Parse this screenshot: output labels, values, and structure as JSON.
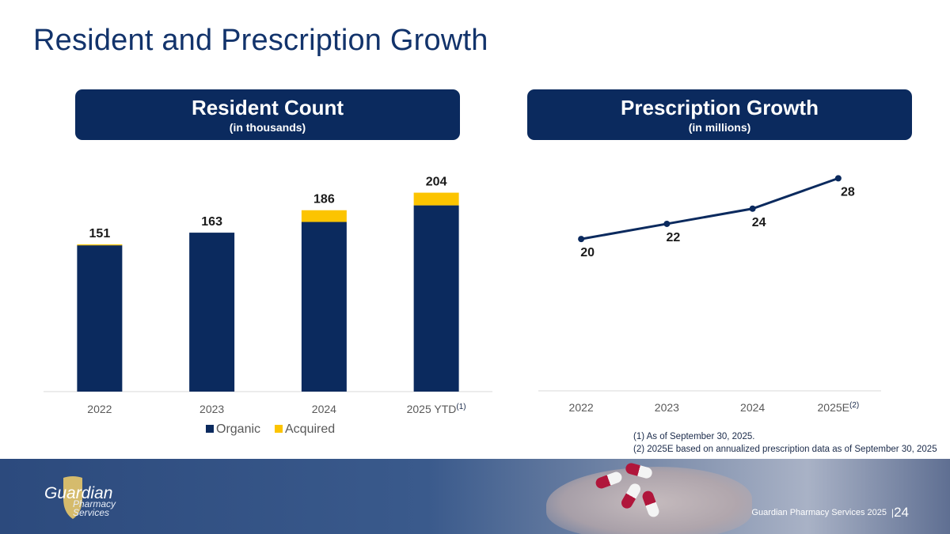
{
  "page": {
    "title": "Resident and Prescription Growth",
    "footer_company": "Guardian Pharmacy Services 2025",
    "separator": "|",
    "page_number": "24",
    "logo": {
      "name": "Guardian",
      "line2": "Pharmacy",
      "line3": "Services"
    }
  },
  "left_panel": {
    "title": "Resident Count",
    "subtitle": "(in thousands)"
  },
  "right_panel": {
    "title": "Prescription Growth",
    "subtitle": "(in millions)"
  },
  "footnotes": [
    "(1) As of September 30, 2025.",
    "(2) 2025E based on annualized prescription data as of September 30, 2025"
  ],
  "colors": {
    "navy": "#0b2a5e",
    "gold": "#fcc400",
    "axis": "#d9d9d9",
    "tick": "#595959"
  },
  "chart_data": [
    {
      "type": "bar",
      "stacked": true,
      "title": "Resident Count",
      "subtitle": "(in thousands)",
      "categories": [
        "2022",
        "2023",
        "2024",
        "2025 YTD"
      ],
      "category_superscripts": [
        "",
        "",
        "",
        "(1)"
      ],
      "series": [
        {
          "name": "Organic",
          "values": [
            150,
            163,
            174,
            191
          ]
        },
        {
          "name": "Acquired",
          "values": [
            1,
            0,
            12,
            13
          ]
        }
      ],
      "totals": [
        151,
        163,
        186,
        204
      ],
      "ylim": [
        0,
        215
      ],
      "legend": "bottom"
    },
    {
      "type": "line",
      "title": "Prescription Growth",
      "subtitle": "(in millions)",
      "categories": [
        "2022",
        "2023",
        "2024",
        "2025E"
      ],
      "category_superscripts": [
        "",
        "",
        "",
        "(2)"
      ],
      "series": [
        {
          "name": "Prescriptions",
          "values": [
            20,
            22,
            24,
            28
          ]
        }
      ],
      "ylim": [
        0,
        30.75
      ],
      "legend": "none"
    }
  ]
}
